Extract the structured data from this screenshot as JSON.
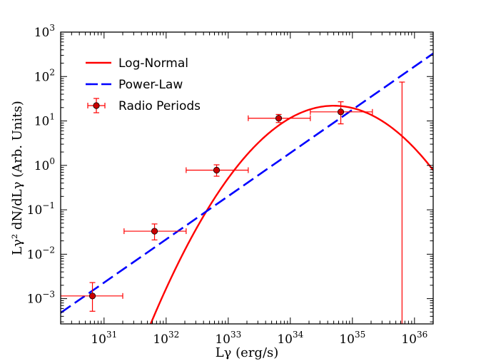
{
  "chart_data": {
    "type": "line",
    "title": "",
    "xlabel": "Lγ (erg/s)",
    "ylabel": "Lγ² dN/dLγ (Arb. Units)",
    "xscale": "log",
    "yscale": "log",
    "xlim": [
      2e+30,
      2e+36
    ],
    "ylim": [
      0.00027,
      1000
    ],
    "x_ticks": [
      {
        "value": 1e+31,
        "base": "10",
        "exp": "31"
      },
      {
        "value": 1e+32,
        "base": "10",
        "exp": "32"
      },
      {
        "value": 1e+33,
        "base": "10",
        "exp": "33"
      },
      {
        "value": 1e+34,
        "base": "10",
        "exp": "34"
      },
      {
        "value": 1e+35,
        "base": "10",
        "exp": "35"
      },
      {
        "value": 1e+36,
        "base": "10",
        "exp": "36"
      }
    ],
    "y_ticks": [
      {
        "value": 0.001,
        "base": "10",
        "exp": "−3"
      },
      {
        "value": 0.01,
        "base": "10",
        "exp": "−2"
      },
      {
        "value": 0.1,
        "base": "10",
        "exp": "−1"
      },
      {
        "value": 1,
        "base": "10",
        "exp": "0"
      },
      {
        "value": 10,
        "base": "10",
        "exp": "1"
      },
      {
        "value": 100,
        "base": "10",
        "exp": "2"
      },
      {
        "value": 1000,
        "base": "10",
        "exp": "3"
      }
    ],
    "legend_position": "top-left",
    "series": [
      {
        "name": "Log-Normal",
        "kind": "curve",
        "color": "#ff0000",
        "style": "solid",
        "peak_x": 5e+34,
        "peak_y": 22,
        "sigma_dex": 0.62
      },
      {
        "name": "Power-Law",
        "kind": "line",
        "color": "#0000ff",
        "style": "dashed",
        "points": [
          [
            2e+30,
            0.00048
          ],
          [
            2e+36,
            330
          ]
        ]
      },
      {
        "name": "Radio Periods",
        "kind": "errorbar",
        "color": "#ff0000",
        "marker_fill": "#cc0000",
        "points": [
          {
            "x": 6.5e+30,
            "y": 0.00115,
            "xlo": 2e+30,
            "xhi": 2e+31,
            "ylo": 0.00052,
            "yhi": 0.0023
          },
          {
            "x": 6.5e+31,
            "y": 0.033,
            "xlo": 2.1e+31,
            "xhi": 2.1e+32,
            "ylo": 0.021,
            "yhi": 0.048
          },
          {
            "x": 6.5e+32,
            "y": 0.78,
            "xlo": 2.1e+32,
            "xhi": 2.1e+33,
            "ylo": 0.57,
            "yhi": 1.03
          },
          {
            "x": 6.5e+33,
            "y": 11.5,
            "xlo": 2.1e+33,
            "xhi": 2.1e+34,
            "ylo": 9.2,
            "yhi": 14
          },
          {
            "x": 6.5e+34,
            "y": 16,
            "xlo": 2.1e+34,
            "xhi": 2.1e+35,
            "ylo": 8.6,
            "yhi": 27
          },
          {
            "x": 6.3e+35,
            "y": null,
            "xlo": null,
            "xhi": null,
            "ylo": 0.00027,
            "yhi": 75
          }
        ]
      }
    ]
  }
}
